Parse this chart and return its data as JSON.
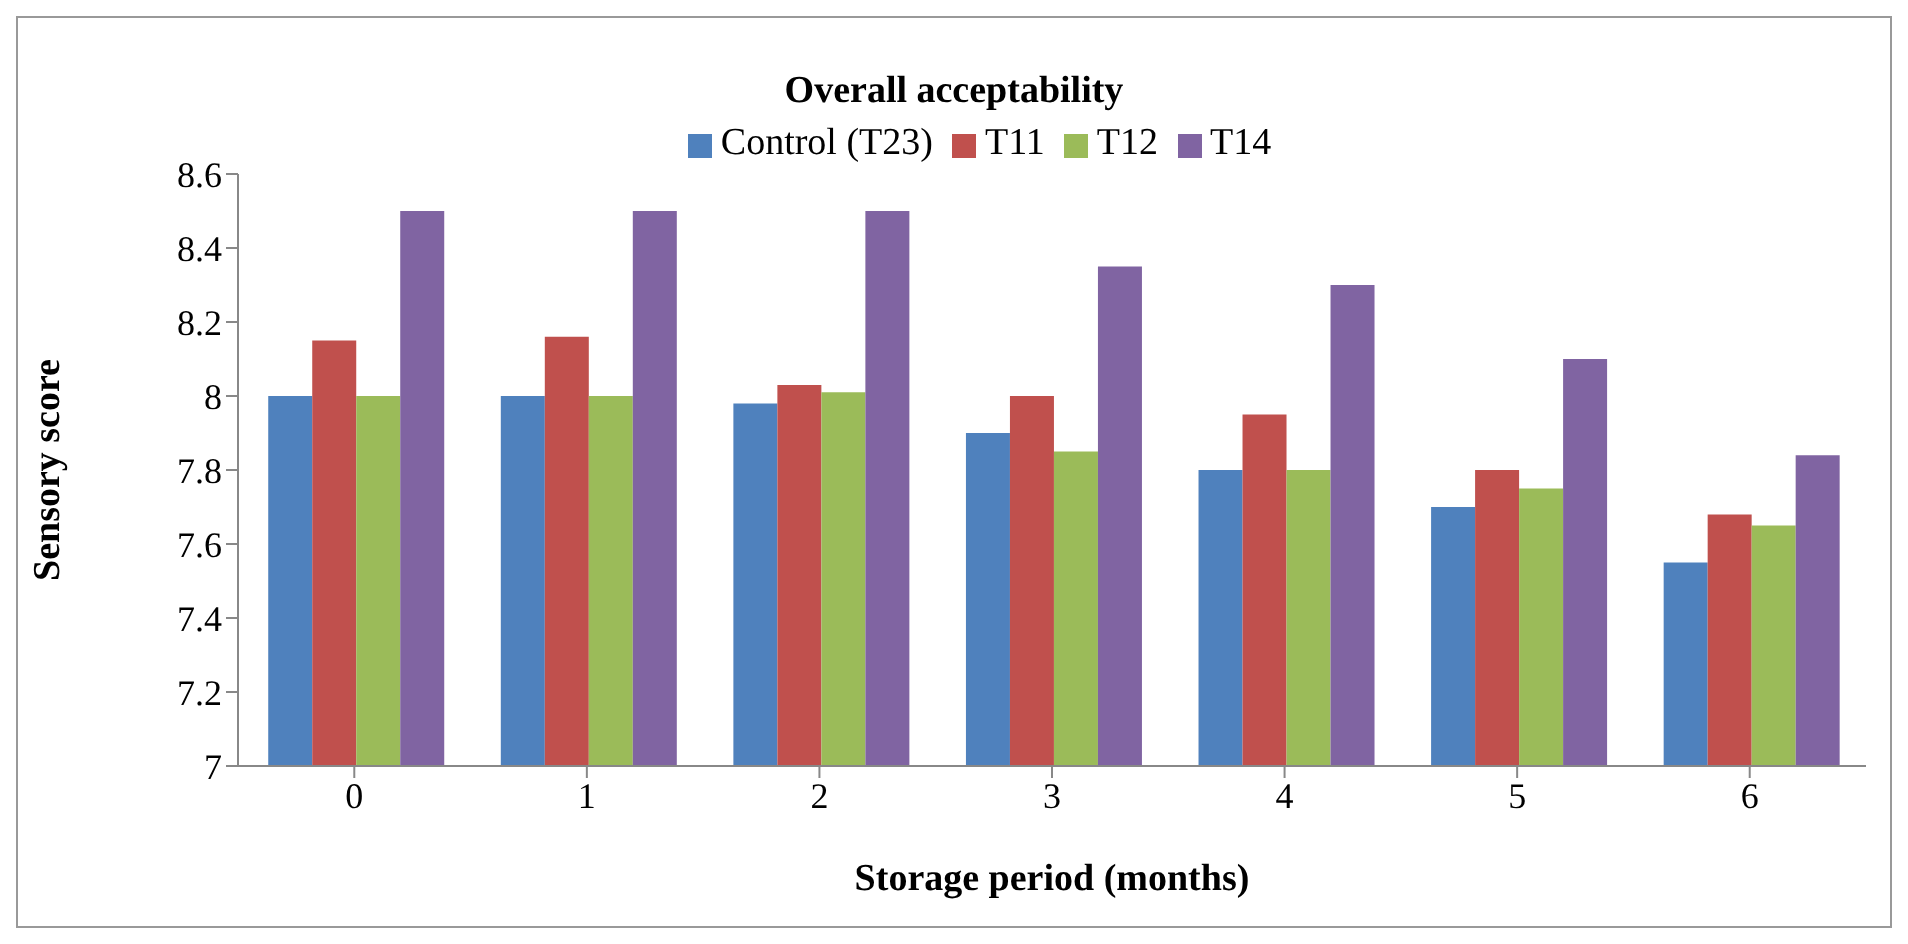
{
  "chart_data": {
    "type": "bar",
    "title": "Overall acceptability",
    "xlabel": "Storage period (months)",
    "ylabel": "Sensory score",
    "categories": [
      "0",
      "1",
      "2",
      "3",
      "4",
      "5",
      "6"
    ],
    "series": [
      {
        "name": "Control (T23)",
        "color": "#4f81bd",
        "values": [
          8.0,
          8.0,
          7.98,
          7.9,
          7.8,
          7.7,
          7.55
        ]
      },
      {
        "name": "T11",
        "color": "#c0504d",
        "values": [
          8.15,
          8.16,
          8.03,
          8.0,
          7.95,
          7.8,
          7.68
        ]
      },
      {
        "name": "T12",
        "color": "#9bbb59",
        "values": [
          8.0,
          8.0,
          8.01,
          7.85,
          7.8,
          7.75,
          7.65
        ]
      },
      {
        "name": "T14",
        "color": "#8064a2",
        "values": [
          8.5,
          8.5,
          8.5,
          8.35,
          8.3,
          8.1,
          7.84
        ]
      }
    ],
    "ylim": [
      7,
      8.6
    ],
    "yticks": [
      7,
      7.2,
      7.4,
      7.6,
      7.8,
      8,
      8.2,
      8.4,
      8.6
    ],
    "grid": false,
    "legend": "top"
  }
}
